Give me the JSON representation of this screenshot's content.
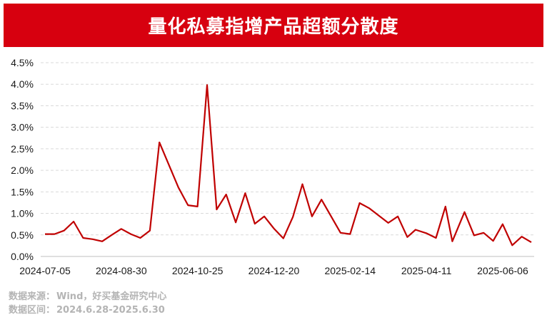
{
  "title": "量化私募指增产品超额分散度",
  "colors": {
    "brand": "#d7000f",
    "line": "#c00000",
    "grid": "#d9d9d9",
    "axis_text": "#1a1a1a",
    "footer_text": "#b4b4b4"
  },
  "footer": {
    "source_label": "数据来源：",
    "source_value": "Wind，好买基金研究中心",
    "range_label": "数据区间：",
    "range_value": "2024.6.28-2025.6.30"
  },
  "chart_data": {
    "type": "line",
    "title": "",
    "xlabel": "",
    "ylabel": "",
    "ylim": [
      0,
      4.5
    ],
    "y_ticks": [
      "0.0%",
      "0.5%",
      "1.0%",
      "1.5%",
      "2.0%",
      "2.5%",
      "3.0%",
      "3.5%",
      "4.0%",
      "4.5%"
    ],
    "x_tick_labels": [
      "2024-07-05",
      "2024-08-30",
      "2024-10-25",
      "2024-12-20",
      "2025-02-14",
      "2025-04-11",
      "2025-06-06"
    ],
    "grid": "horizontal-dashed",
    "legend": "none",
    "series": [
      {
        "x": [
          "2024-07-05",
          "2024-07-12",
          "2024-07-19",
          "2024-07-26",
          "2024-08-02",
          "2024-08-09",
          "2024-08-16",
          "2024-08-23",
          "2024-08-30",
          "2024-09-06",
          "2024-09-13",
          "2024-09-20",
          "2024-09-27",
          "2024-10-11",
          "2024-10-18",
          "2024-10-25",
          "2024-11-01",
          "2024-11-08",
          "2024-11-15",
          "2024-11-22",
          "2024-11-29",
          "2024-12-06",
          "2024-12-13",
          "2024-12-20",
          "2024-12-27",
          "2025-01-03",
          "2025-01-10",
          "2025-01-17",
          "2025-01-24",
          "2025-02-07",
          "2025-02-14",
          "2025-02-21",
          "2025-02-28",
          "2025-03-07",
          "2025-03-14",
          "2025-03-21",
          "2025-03-28",
          "2025-04-03",
          "2025-04-11",
          "2025-04-18",
          "2025-04-25",
          "2025-04-30",
          "2025-05-09",
          "2025-05-16",
          "2025-05-23",
          "2025-05-30",
          "2025-06-06",
          "2025-06-13",
          "2025-06-20",
          "2025-06-27"
        ],
        "values": [
          0.52,
          0.52,
          0.6,
          0.81,
          0.43,
          0.4,
          0.35,
          0.5,
          0.64,
          0.52,
          0.43,
          0.6,
          2.65,
          1.6,
          1.19,
          1.16,
          3.98,
          1.09,
          1.44,
          0.79,
          1.47,
          0.76,
          0.93,
          0.65,
          0.42,
          0.92,
          1.68,
          0.93,
          1.32,
          0.55,
          0.52,
          1.24,
          1.12,
          0.95,
          0.78,
          0.93,
          0.45,
          0.62,
          0.54,
          0.43,
          1.16,
          0.35,
          1.03,
          0.49,
          0.55,
          0.36,
          0.75,
          0.26,
          0.46,
          0.33
        ]
      }
    ]
  }
}
